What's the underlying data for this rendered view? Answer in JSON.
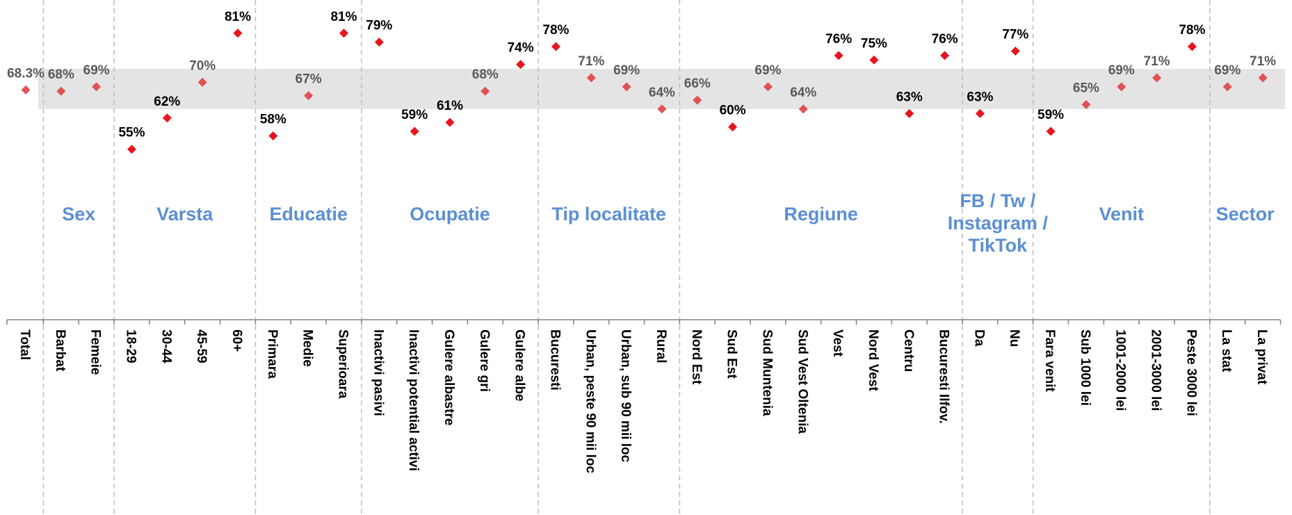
{
  "chart_data": {
    "type": "scatter",
    "ylim": [
      40,
      90
    ],
    "band": [
      64,
      73
    ],
    "point_color": "#E8141E",
    "point_color_muted": "#E05255",
    "group_label_color": "#5B8FD4",
    "categories": [
      "Total",
      "Barbat",
      "Femeie",
      "18-29",
      "30-44",
      "45-59",
      "60+",
      "Primara",
      "Medie",
      "Superioara",
      "Inactivi pasivi",
      "Inactivi potential activi",
      "Gulere albastre",
      "Gulere gri",
      "Gulere albe",
      "Bucuresti",
      "Urban, peste 90 mii loc",
      "Urban, sub 90 mii loc",
      "Rural",
      "Nord Est",
      "Sud Est",
      "Sud Muntenia",
      "Sud Vest Oltenia",
      "Vest",
      "Nord Vest",
      "Centru",
      "Bucuresti Ilfov.",
      "Da",
      "Nu",
      "Fara venit",
      "Sub 1000 lei",
      "1001-2000 lei",
      "2001-3000 lei",
      "Peste 3000 lei",
      "La stat",
      "La privat"
    ],
    "values": [
      68.3,
      68,
      69,
      55,
      62,
      70,
      81,
      58,
      67,
      81,
      79,
      59,
      61,
      68,
      74,
      78,
      71,
      69,
      64,
      66,
      60,
      69,
      64,
      76,
      75,
      63,
      76,
      63,
      77,
      59,
      65,
      69,
      71,
      78,
      69,
      71
    ],
    "value_labels": [
      "68.3%",
      "68%",
      "69%",
      "55%",
      "62%",
      "70%",
      "81%",
      "58%",
      "67%",
      "81%",
      "79%",
      "59%",
      "61%",
      "68%",
      "74%",
      "78%",
      "71%",
      "69%",
      "64%",
      "66%",
      "60%",
      "69%",
      "64%",
      "76%",
      "75%",
      "63%",
      "76%",
      "63%",
      "77%",
      "59%",
      "65%",
      "69%",
      "71%",
      "78%",
      "69%",
      "71%"
    ],
    "groups": [
      {
        "lines": [
          "Sex"
        ],
        "start": 1,
        "end": 2
      },
      {
        "lines": [
          "Varsta"
        ],
        "start": 3,
        "end": 6
      },
      {
        "lines": [
          "Educatie"
        ],
        "start": 7,
        "end": 9
      },
      {
        "lines": [
          "Ocupatie"
        ],
        "start": 10,
        "end": 14
      },
      {
        "lines": [
          "Tip localitate"
        ],
        "start": 15,
        "end": 18
      },
      {
        "lines": [
          "Regiune"
        ],
        "start": 19,
        "end": 26
      },
      {
        "lines": [
          "FB / Tw /",
          "Instagram /",
          "TikTok"
        ],
        "start": 27,
        "end": 28
      },
      {
        "lines": [
          "Venit"
        ],
        "start": 29,
        "end": 33
      },
      {
        "lines": [
          "Sector"
        ],
        "start": 34,
        "end": 35
      }
    ]
  }
}
